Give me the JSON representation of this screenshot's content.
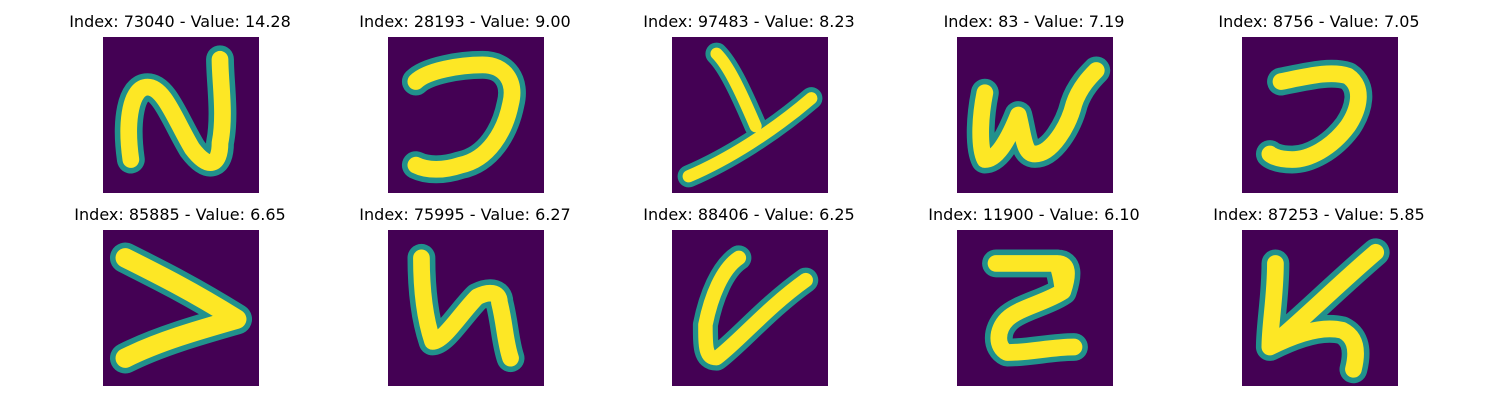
{
  "figure": {
    "colors": {
      "background": "#440154",
      "stroke": "#fde725",
      "edge": "#21918c",
      "edge_dark": "#3b528b"
    },
    "panels": [
      {
        "title": "Index: 73040 - Value: 14.28",
        "glyph": "N"
      },
      {
        "title": "Index: 28193 - Value: 9.00",
        "glyph": "reversed-C"
      },
      {
        "title": "Index: 97483 - Value: 8.23",
        "glyph": "Y"
      },
      {
        "title": "Index: 83 - Value: 7.19",
        "glyph": "W"
      },
      {
        "title": "Index: 8756 - Value: 7.05",
        "glyph": "reversed-C"
      },
      {
        "title": "Index: 85885 - Value: 6.65",
        "glyph": "greater-than"
      },
      {
        "title": "Index: 75995 - Value: 6.27",
        "glyph": "U"
      },
      {
        "title": "Index: 88406 - Value: 6.25",
        "glyph": "V"
      },
      {
        "title": "Index: 11900 - Value: 6.10",
        "glyph": "two"
      },
      {
        "title": "Index: 87253 - Value: 5.85",
        "glyph": "K"
      }
    ]
  }
}
